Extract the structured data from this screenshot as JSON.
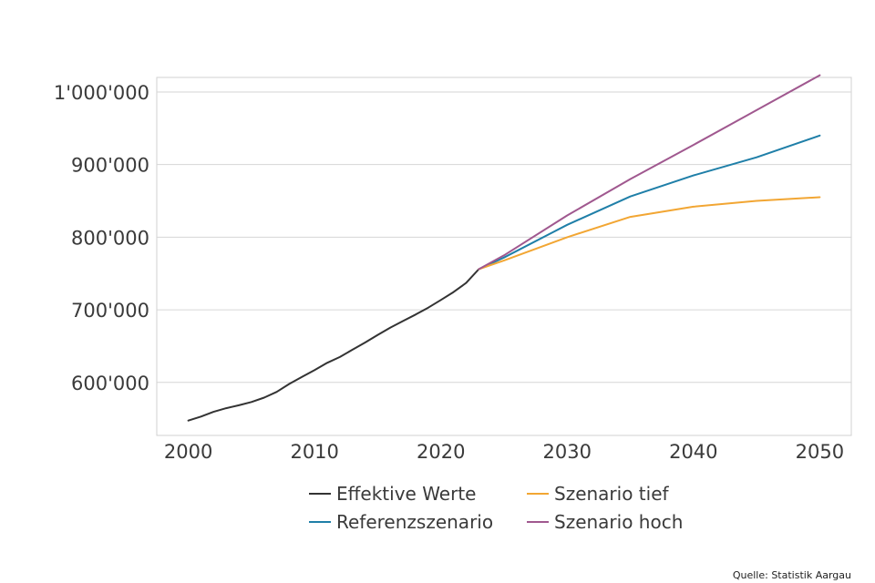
{
  "chart_data": {
    "type": "line",
    "title": "",
    "xlabel": "",
    "ylabel": "",
    "xlim": [
      1997.5,
      2052.5
    ],
    "ylim": [
      527000,
      1020000
    ],
    "x_ticks": [
      2000,
      2010,
      2020,
      2030,
      2040,
      2050
    ],
    "x_tick_labels": [
      "2000",
      "2010",
      "2020",
      "2030",
      "2040",
      "2050"
    ],
    "y_ticks": [
      600000,
      700000,
      800000,
      900000,
      1000000
    ],
    "y_tick_labels": [
      "600'000",
      "700'000",
      "800'000",
      "900'000",
      "1'000'000"
    ],
    "grid": "horizontal",
    "legend_position": "bottom",
    "series": [
      {
        "name": "Effektive Werte",
        "color": "#333333",
        "x": [
          2000,
          2001,
          2002,
          2003,
          2004,
          2005,
          2006,
          2007,
          2008,
          2009,
          2010,
          2011,
          2012,
          2013,
          2014,
          2015,
          2016,
          2017,
          2018,
          2019,
          2020,
          2021,
          2022,
          2023
        ],
        "values": [
          547500,
          553000,
          559500,
          564500,
          568500,
          573000,
          579000,
          587000,
          598000,
          607500,
          617000,
          627000,
          635000,
          645000,
          655000,
          665500,
          675500,
          684500,
          693500,
          703000,
          713500,
          724500,
          737000,
          756000
        ]
      },
      {
        "name": "Referenzszenario",
        "color": "#1f7fa8",
        "x": [
          2023,
          2025,
          2030,
          2035,
          2040,
          2045,
          2050
        ],
        "values": [
          756000,
          772000,
          817000,
          856000,
          885000,
          910000,
          940000
        ]
      },
      {
        "name": "Szenario tief",
        "color": "#f2a633",
        "x": [
          2023,
          2025,
          2030,
          2035,
          2040,
          2045,
          2050
        ],
        "values": [
          756000,
          768000,
          800000,
          828000,
          842000,
          850000,
          855000
        ]
      },
      {
        "name": "Szenario hoch",
        "color": "#a0588f",
        "x": [
          2023,
          2025,
          2030,
          2035,
          2040,
          2045,
          2050
        ],
        "values": [
          756000,
          775000,
          830000,
          880000,
          927000,
          975000,
          1023000
        ]
      }
    ]
  },
  "legend": {
    "items": [
      {
        "label": "Effektive Werte",
        "color": "#333333"
      },
      {
        "label": "Szenario tief",
        "color": "#f2a633"
      },
      {
        "label": "Referenzszenario",
        "color": "#1f7fa8"
      },
      {
        "label": "Szenario hoch",
        "color": "#a0588f"
      }
    ]
  },
  "source": "Quelle: Statistik Aargau"
}
